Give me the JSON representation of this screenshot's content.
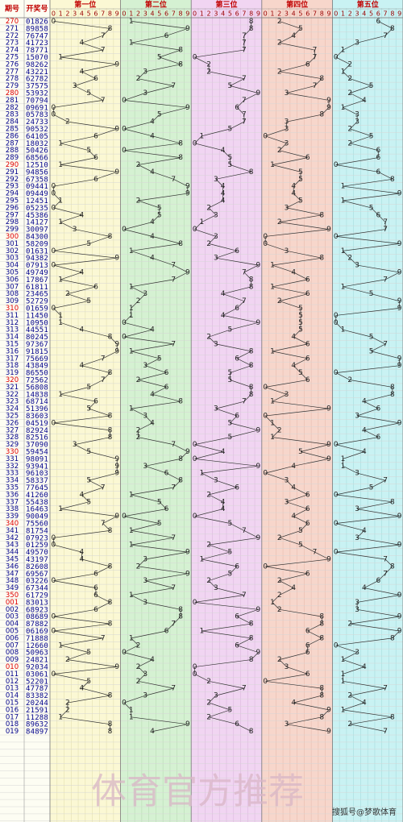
{
  "header": {
    "issue_label": "期号",
    "number_label": "开奖号",
    "positions": [
      "第一位",
      "第二位",
      "第三位",
      "第四位",
      "第五位"
    ],
    "digit_labels": [
      "0",
      "1",
      "2",
      "3",
      "4",
      "5",
      "6",
      "7",
      "8",
      "9"
    ]
  },
  "rows": [
    {
      "issue": "270",
      "digits": [
        0,
        1,
        8,
        2,
        6
      ]
    },
    {
      "issue": "271",
      "digits": [
        8,
        9,
        8,
        5,
        8
      ]
    },
    {
      "issue": "272",
      "digits": [
        7,
        6,
        7,
        4,
        7
      ]
    },
    {
      "issue": "273",
      "digits": [
        4,
        1,
        7,
        2,
        3
      ]
    },
    {
      "issue": "274",
      "digits": [
        7,
        8,
        7,
        7,
        1
      ]
    },
    {
      "issue": "275",
      "digits": [
        1,
        5,
        0,
        7,
        0
      ]
    },
    {
      "issue": "276",
      "digits": [
        9,
        8,
        2,
        6,
        2
      ]
    },
    {
      "issue": "277",
      "digits": [
        4,
        3,
        2,
        2,
        1
      ]
    },
    {
      "issue": "278",
      "digits": [
        6,
        2,
        7,
        8,
        2
      ]
    },
    {
      "issue": "279",
      "digits": [
        3,
        7,
        5,
        7,
        5
      ]
    },
    {
      "issue": "280",
      "digits": [
        5,
        3,
        9,
        3,
        2
      ]
    },
    {
      "issue": "281",
      "digits": [
        7,
        0,
        7,
        9,
        4
      ]
    },
    {
      "issue": "282",
      "digits": [
        0,
        9,
        6,
        9,
        1
      ]
    },
    {
      "issue": "283",
      "digits": [
        0,
        5,
        7,
        8,
        3
      ]
    },
    {
      "issue": "284",
      "digits": [
        2,
        4,
        7,
        3,
        3
      ]
    },
    {
      "issue": "285",
      "digits": [
        9,
        0,
        5,
        3,
        2
      ]
    },
    {
      "issue": "286",
      "digits": [
        6,
        4,
        1,
        0,
        5
      ]
    },
    {
      "issue": "287",
      "digits": [
        1,
        8,
        0,
        3,
        2
      ]
    },
    {
      "issue": "288",
      "digits": [
        5,
        0,
        4,
        2,
        6
      ]
    },
    {
      "issue": "289",
      "digits": [
        6,
        8,
        5,
        6,
        6
      ]
    },
    {
      "issue": "290",
      "digits": [
        1,
        2,
        5,
        1,
        0
      ]
    },
    {
      "issue": "291",
      "digits": [
        9,
        4,
        8,
        5,
        6
      ]
    },
    {
      "issue": "292",
      "digits": [
        6,
        7,
        3,
        5,
        8
      ]
    },
    {
      "issue": "293",
      "digits": [
        0,
        9,
        4,
        4,
        1
      ]
    },
    {
      "issue": "294",
      "digits": [
        0,
        9,
        4,
        4,
        9
      ]
    },
    {
      "issue": "295",
      "digits": [
        1,
        2,
        4,
        5,
        1
      ]
    },
    {
      "issue": "296",
      "digits": [
        0,
        5,
        2,
        3,
        5
      ]
    },
    {
      "issue": "297",
      "digits": [
        4,
        5,
        3,
        8,
        6
      ]
    },
    {
      "issue": "298",
      "digits": [
        1,
        4,
        1,
        2,
        7
      ]
    },
    {
      "issue": "299",
      "digits": [
        3,
        0,
        0,
        9,
        7
      ]
    },
    {
      "issue": "300",
      "digits": [
        8,
        4,
        3,
        0,
        0
      ]
    },
    {
      "issue": "301",
      "digits": [
        5,
        8,
        2,
        0,
        9
      ]
    },
    {
      "issue": "302",
      "digits": [
        0,
        1,
        6,
        3,
        1
      ]
    },
    {
      "issue": "303",
      "digits": [
        9,
        4,
        3,
        8,
        2
      ]
    },
    {
      "issue": "304",
      "digits": [
        0,
        7,
        9,
        1,
        3
      ]
    },
    {
      "issue": "305",
      "digits": [
        4,
        9,
        7,
        4,
        9
      ]
    },
    {
      "issue": "306",
      "digits": [
        1,
        7,
        8,
        6,
        7
      ]
    },
    {
      "issue": "307",
      "digits": [
        6,
        1,
        8,
        1,
        1
      ]
    },
    {
      "issue": "308",
      "digits": [
        2,
        3,
        4,
        6,
        5
      ]
    },
    {
      "issue": "309",
      "digits": [
        5,
        2,
        7,
        2,
        9
      ]
    },
    {
      "issue": "310",
      "digits": [
        0,
        1,
        6,
        5,
        9
      ]
    },
    {
      "issue": "311",
      "digits": [
        1,
        1,
        4,
        5,
        0
      ]
    },
    {
      "issue": "312",
      "digits": [
        1,
        0,
        9,
        5,
        0
      ]
    },
    {
      "issue": "313",
      "digits": [
        4,
        4,
        5,
        5,
        1
      ]
    },
    {
      "issue": "314",
      "digits": [
        8,
        0,
        2,
        4,
        5
      ]
    },
    {
      "issue": "315",
      "digits": [
        9,
        7,
        3,
        6,
        7
      ]
    },
    {
      "issue": "316",
      "digits": [
        9,
        1,
        8,
        1,
        5
      ]
    },
    {
      "issue": "317",
      "digits": [
        7,
        5,
        6,
        6,
        9
      ]
    },
    {
      "issue": "318",
      "digits": [
        4,
        3,
        8,
        4,
        9
      ]
    },
    {
      "issue": "319",
      "digits": [
        8,
        6,
        5,
        5,
        0
      ]
    },
    {
      "issue": "320",
      "digits": [
        7,
        2,
        5,
        6,
        2
      ]
    },
    {
      "issue": "321",
      "digits": [
        5,
        6,
        8,
        0,
        8
      ]
    },
    {
      "issue": "322",
      "digits": [
        1,
        4,
        8,
        3,
        8
      ]
    },
    {
      "issue": "323",
      "digits": [
        6,
        8,
        7,
        1,
        4
      ]
    },
    {
      "issue": "324",
      "digits": [
        5,
        1,
        3,
        9,
        6
      ]
    },
    {
      "issue": "325",
      "digits": [
        8,
        3,
        6,
        0,
        3
      ]
    },
    {
      "issue": "326",
      "digits": [
        0,
        4,
        5,
        1,
        9
      ]
    },
    {
      "issue": "327",
      "digits": [
        8,
        2,
        9,
        2,
        4
      ]
    },
    {
      "issue": "328",
      "digits": [
        8,
        2,
        5,
        1,
        6
      ]
    },
    {
      "issue": "329",
      "digits": [
        3,
        7,
        0,
        9,
        0
      ]
    },
    {
      "issue": "330",
      "digits": [
        5,
        9,
        4,
        5,
        4
      ]
    },
    {
      "issue": "331",
      "digits": [
        9,
        8,
        0,
        9,
        1
      ]
    },
    {
      "issue": "332",
      "digits": [
        9,
        3,
        9,
        4,
        1
      ]
    },
    {
      "issue": "333",
      "digits": [
        9,
        6,
        1,
        0,
        3
      ]
    },
    {
      "issue": "334",
      "digits": [
        5,
        8,
        3,
        3,
        7
      ]
    },
    {
      "issue": "335",
      "digits": [
        7,
        7,
        6,
        4,
        5
      ]
    },
    {
      "issue": "336",
      "digits": [
        4,
        1,
        2,
        6,
        0
      ]
    },
    {
      "issue": "337",
      "digits": [
        5,
        5,
        4,
        3,
        8
      ]
    },
    {
      "issue": "338",
      "digits": [
        1,
        6,
        4,
        6,
        3
      ]
    },
    {
      "issue": "339",
      "digits": [
        9,
        0,
        0,
        4,
        9
      ]
    },
    {
      "issue": "340",
      "digits": [
        7,
        5,
        5,
        6,
        0
      ]
    },
    {
      "issue": "341",
      "digits": [
        8,
        1,
        7,
        5,
        4
      ]
    },
    {
      "issue": "342",
      "digits": [
        0,
        7,
        9,
        2,
        3
      ]
    },
    {
      "issue": "343",
      "digits": [
        0,
        1,
        2,
        5,
        9
      ]
    },
    {
      "issue": "344",
      "digits": [
        4,
        9,
        5,
        7,
        0
      ]
    },
    {
      "issue": "345",
      "digits": [
        4,
        3,
        1,
        9,
        7
      ]
    },
    {
      "issue": "346",
      "digits": [
        8,
        2,
        6,
        0,
        8
      ]
    },
    {
      "issue": "347",
      "digits": [
        6,
        9,
        5,
        6,
        7
      ]
    },
    {
      "issue": "348",
      "digits": [
        0,
        3,
        2,
        2,
        6
      ]
    },
    {
      "issue": "349",
      "digits": [
        6,
        7,
        3,
        4,
        4
      ]
    },
    {
      "issue": "350",
      "digits": [
        6,
        1,
        7,
        2,
        9
      ]
    },
    {
      "issue": "001",
      "digits": [
        8,
        3,
        0,
        1,
        3
      ]
    },
    {
      "issue": "002",
      "digits": [
        6,
        8,
        9,
        2,
        3
      ]
    },
    {
      "issue": "003",
      "digits": [
        0,
        8,
        6,
        8,
        9
      ]
    },
    {
      "issue": "004",
      "digits": [
        8,
        7,
        8,
        8,
        2
      ]
    },
    {
      "issue": "005",
      "digits": [
        0,
        6,
        1,
        6,
        9
      ]
    },
    {
      "issue": "006",
      "digits": [
        7,
        1,
        8,
        8,
        8
      ]
    },
    {
      "issue": "007",
      "digits": [
        1,
        2,
        6,
        6,
        0
      ]
    },
    {
      "issue": "008",
      "digits": [
        5,
        0,
        9,
        6,
        3
      ]
    },
    {
      "issue": "009",
      "digits": [
        2,
        4,
        8,
        2,
        1
      ]
    },
    {
      "issue": "010",
      "digits": [
        9,
        2,
        0,
        3,
        4
      ]
    },
    {
      "issue": "011",
      "digits": [
        0,
        3,
        0,
        6,
        1
      ]
    },
    {
      "issue": "012",
      "digits": [
        5,
        2,
        2,
        0,
        1
      ]
    },
    {
      "issue": "013",
      "digits": [
        4,
        7,
        7,
        8,
        7
      ]
    },
    {
      "issue": "014",
      "digits": [
        8,
        3,
        3,
        8,
        2
      ]
    },
    {
      "issue": "015",
      "digits": [
        2,
        0,
        2,
        4,
        4
      ]
    },
    {
      "issue": "016",
      "digits": [
        2,
        1,
        5,
        9,
        1
      ]
    },
    {
      "issue": "017",
      "digits": [
        1,
        1,
        2,
        8,
        8
      ]
    },
    {
      "issue": "018",
      "digits": [
        8,
        9,
        6,
        3,
        2
      ]
    },
    {
      "issue": "019",
      "digits": [
        8,
        4,
        8,
        9,
        7
      ]
    }
  ],
  "watermark": "体育官方推荐",
  "credit": "搜狐号@梦歌体育"
}
